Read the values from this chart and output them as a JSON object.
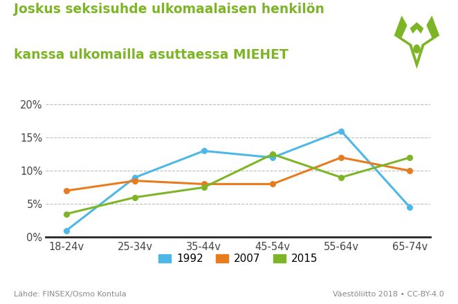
{
  "title_line1": "Joskus seksisuhde ulkomaalaisen henkilön",
  "title_line2": "kanssa ulkomailla asuttaessa MIEHET",
  "categories": [
    "18-24v",
    "25-34v",
    "35-44v",
    "45-54v",
    "55-64v",
    "65-74v"
  ],
  "series": {
    "1992": [
      1.0,
      9.0,
      13.0,
      12.0,
      16.0,
      4.5
    ],
    "2007": [
      7.0,
      8.5,
      8.0,
      8.0,
      12.0,
      10.0
    ],
    "2015": [
      3.5,
      6.0,
      7.5,
      12.5,
      9.0,
      12.0
    ]
  },
  "colors": {
    "1992": "#4DB8E8",
    "2007": "#E87B1E",
    "2015": "#7DB526"
  },
  "ylim": [
    0,
    22
  ],
  "yticks": [
    0,
    5,
    10,
    15,
    20
  ],
  "ytick_labels": [
    "0%",
    "5%",
    "10%",
    "15%",
    "20%"
  ],
  "source_left": "Lähde: FINSEX/Osmo Kontula",
  "source_right": "Väestöliitto 2018 • CC-BY-4.0",
  "background_color": "#ffffff",
  "title_color": "#7DB526",
  "grid_color": "#bbbbbb",
  "logo_color": "#7DB526"
}
